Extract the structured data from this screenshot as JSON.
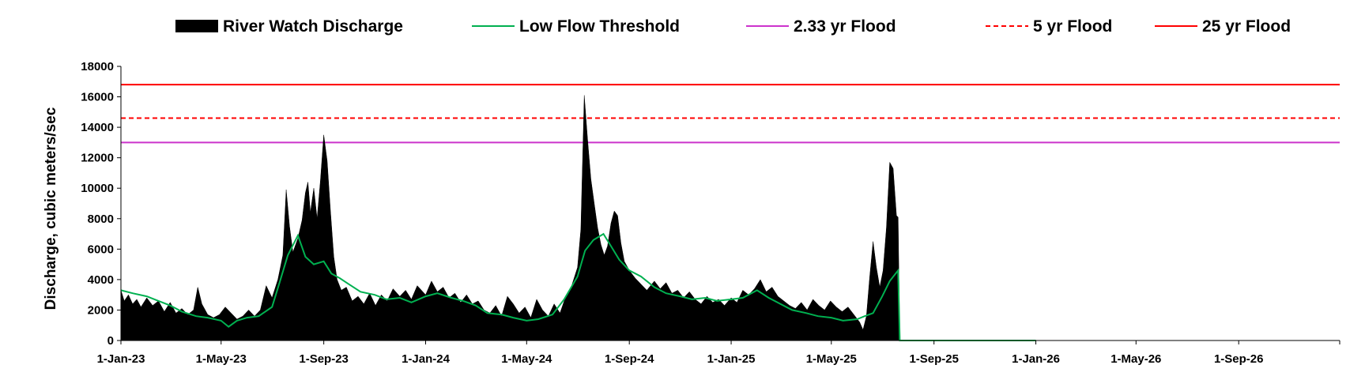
{
  "chart_data": {
    "type": "area",
    "title": "",
    "xlabel": "",
    "ylabel": "Discharge, cubic meters/sec",
    "x_range": [
      "2023-01-01",
      "2026-12-31"
    ],
    "ylim": [
      0,
      18000
    ],
    "y_ticks": [
      0,
      2000,
      4000,
      6000,
      8000,
      10000,
      12000,
      14000,
      16000,
      18000
    ],
    "x_ticks": [
      {
        "date": "2023-01-01",
        "label": "1-Jan-23"
      },
      {
        "date": "2023-05-01",
        "label": "1-May-23"
      },
      {
        "date": "2023-09-01",
        "label": "1-Sep-23"
      },
      {
        "date": "2024-01-01",
        "label": "1-Jan-24"
      },
      {
        "date": "2024-05-01",
        "label": "1-May-24"
      },
      {
        "date": "2024-09-01",
        "label": "1-Sep-24"
      },
      {
        "date": "2025-01-01",
        "label": "1-Jan-25"
      },
      {
        "date": "2025-05-01",
        "label": "1-May-25"
      },
      {
        "date": "2025-09-01",
        "label": "1-Sep-25"
      },
      {
        "date": "2026-01-01",
        "label": "1-Jan-26"
      },
      {
        "date": "2026-05-01",
        "label": "1-May-26"
      },
      {
        "date": "2026-09-01",
        "label": "1-Sep-26"
      }
    ],
    "grid": false,
    "legend_position": "top",
    "legend": [
      {
        "name": "River Watch Discharge",
        "style": "area",
        "color": "#000000"
      },
      {
        "name": "Low Flow Threshold",
        "style": "line",
        "color": "#00b050"
      },
      {
        "name": "2.33 yr Flood",
        "style": "line",
        "color": "#cc33cc"
      },
      {
        "name": "5 yr Flood",
        "style": "dashed",
        "color": "#ff0000"
      },
      {
        "name": "25 yr Flood",
        "style": "line",
        "color": "#ff0000"
      }
    ],
    "thresholds": [
      {
        "name": "2.33 yr Flood",
        "value": 13000,
        "color": "#cc33cc",
        "dash": false
      },
      {
        "name": "5 yr Flood",
        "value": 14600,
        "color": "#ff0000",
        "dash": true
      },
      {
        "name": "25 yr Flood",
        "value": 16800,
        "color": "#ff0000",
        "dash": false
      }
    ],
    "series": [
      {
        "name": "River Watch Discharge",
        "style": "area",
        "color": "#000000",
        "points": [
          [
            "2023-01-01",
            3300
          ],
          [
            "2023-01-05",
            2600
          ],
          [
            "2023-01-10",
            3000
          ],
          [
            "2023-01-15",
            2400
          ],
          [
            "2023-01-20",
            2700
          ],
          [
            "2023-01-25",
            2200
          ],
          [
            "2023-02-01",
            2800
          ],
          [
            "2023-02-08",
            2300
          ],
          [
            "2023-02-15",
            2600
          ],
          [
            "2023-02-22",
            1900
          ],
          [
            "2023-03-01",
            2500
          ],
          [
            "2023-03-08",
            1800
          ],
          [
            "2023-03-15",
            2100
          ],
          [
            "2023-03-22",
            1700
          ],
          [
            "2023-03-29",
            2000
          ],
          [
            "2023-04-03",
            3500
          ],
          [
            "2023-04-08",
            2400
          ],
          [
            "2023-04-15",
            1700
          ],
          [
            "2023-04-22",
            1500
          ],
          [
            "2023-04-29",
            1700
          ],
          [
            "2023-05-06",
            2200
          ],
          [
            "2023-05-13",
            1800
          ],
          [
            "2023-05-20",
            1400
          ],
          [
            "2023-05-27",
            1600
          ],
          [
            "2023-06-03",
            2000
          ],
          [
            "2023-06-10",
            1600
          ],
          [
            "2023-06-17",
            2000
          ],
          [
            "2023-06-24",
            3600
          ],
          [
            "2023-07-01",
            2800
          ],
          [
            "2023-07-08",
            4000
          ],
          [
            "2023-07-14",
            5600
          ],
          [
            "2023-07-18",
            9900
          ],
          [
            "2023-07-22",
            7500
          ],
          [
            "2023-07-26",
            5800
          ],
          [
            "2023-08-01",
            6700
          ],
          [
            "2023-08-06",
            7900
          ],
          [
            "2023-08-10",
            9700
          ],
          [
            "2023-08-13",
            10400
          ],
          [
            "2023-08-16",
            8400
          ],
          [
            "2023-08-20",
            10000
          ],
          [
            "2023-08-24",
            8000
          ],
          [
            "2023-08-28",
            10500
          ],
          [
            "2023-09-01",
            13500
          ],
          [
            "2023-09-05",
            11800
          ],
          [
            "2023-09-09",
            8500
          ],
          [
            "2023-09-13",
            5500
          ],
          [
            "2023-09-17",
            4000
          ],
          [
            "2023-09-22",
            3300
          ],
          [
            "2023-09-28",
            3500
          ],
          [
            "2023-10-05",
            2600
          ],
          [
            "2023-10-12",
            2900
          ],
          [
            "2023-10-19",
            2400
          ],
          [
            "2023-10-26",
            3100
          ],
          [
            "2023-11-02",
            2300
          ],
          [
            "2023-11-09",
            3000
          ],
          [
            "2023-11-16",
            2600
          ],
          [
            "2023-11-23",
            3400
          ],
          [
            "2023-12-01",
            2900
          ],
          [
            "2023-12-08",
            3300
          ],
          [
            "2023-12-15",
            2700
          ],
          [
            "2023-12-22",
            3600
          ],
          [
            "2024-01-01",
            3000
          ],
          [
            "2024-01-08",
            3900
          ],
          [
            "2024-01-15",
            3200
          ],
          [
            "2024-01-22",
            3500
          ],
          [
            "2024-01-29",
            2800
          ],
          [
            "2024-02-05",
            3100
          ],
          [
            "2024-02-12",
            2500
          ],
          [
            "2024-02-19",
            3000
          ],
          [
            "2024-02-26",
            2400
          ],
          [
            "2024-03-04",
            2600
          ],
          [
            "2024-03-11",
            2000
          ],
          [
            "2024-03-18",
            1800
          ],
          [
            "2024-03-25",
            2300
          ],
          [
            "2024-04-01",
            1600
          ],
          [
            "2024-04-08",
            2900
          ],
          [
            "2024-04-15",
            2400
          ],
          [
            "2024-04-22",
            1800
          ],
          [
            "2024-04-29",
            2200
          ],
          [
            "2024-05-06",
            1500
          ],
          [
            "2024-05-13",
            2700
          ],
          [
            "2024-05-20",
            2000
          ],
          [
            "2024-05-27",
            1600
          ],
          [
            "2024-06-03",
            2400
          ],
          [
            "2024-06-10",
            1800
          ],
          [
            "2024-06-17",
            2900
          ],
          [
            "2024-06-24",
            3600
          ],
          [
            "2024-07-01",
            4800
          ],
          [
            "2024-07-05",
            7300
          ],
          [
            "2024-07-09",
            16100
          ],
          [
            "2024-07-13",
            13200
          ],
          [
            "2024-07-17",
            10600
          ],
          [
            "2024-07-21",
            9000
          ],
          [
            "2024-07-25",
            7400
          ],
          [
            "2024-07-29",
            6300
          ],
          [
            "2024-08-02",
            5600
          ],
          [
            "2024-08-06",
            6200
          ],
          [
            "2024-08-10",
            7700
          ],
          [
            "2024-08-14",
            8500
          ],
          [
            "2024-08-18",
            8200
          ],
          [
            "2024-08-22",
            6400
          ],
          [
            "2024-08-26",
            5200
          ],
          [
            "2024-09-01",
            4600
          ],
          [
            "2024-09-08",
            4100
          ],
          [
            "2024-09-15",
            3700
          ],
          [
            "2024-09-22",
            3300
          ],
          [
            "2024-10-01",
            3900
          ],
          [
            "2024-10-08",
            3400
          ],
          [
            "2024-10-15",
            3800
          ],
          [
            "2024-10-22",
            3100
          ],
          [
            "2024-10-29",
            3300
          ],
          [
            "2024-11-05",
            2800
          ],
          [
            "2024-11-12",
            3200
          ],
          [
            "2024-11-19",
            2700
          ],
          [
            "2024-11-26",
            2400
          ],
          [
            "2024-12-03",
            2900
          ],
          [
            "2024-12-10",
            2500
          ],
          [
            "2024-12-17",
            2700
          ],
          [
            "2024-12-24",
            2300
          ],
          [
            "2025-01-01",
            2800
          ],
          [
            "2025-01-08",
            2500
          ],
          [
            "2025-01-15",
            3300
          ],
          [
            "2025-01-22",
            3000
          ],
          [
            "2025-01-29",
            3400
          ],
          [
            "2025-02-05",
            4000
          ],
          [
            "2025-02-12",
            3200
          ],
          [
            "2025-02-19",
            3500
          ],
          [
            "2025-02-26",
            2900
          ],
          [
            "2025-03-05",
            2600
          ],
          [
            "2025-03-12",
            2300
          ],
          [
            "2025-03-19",
            2100
          ],
          [
            "2025-03-26",
            2500
          ],
          [
            "2025-04-02",
            2000
          ],
          [
            "2025-04-09",
            2700
          ],
          [
            "2025-04-16",
            2300
          ],
          [
            "2025-04-23",
            2000
          ],
          [
            "2025-04-30",
            2600
          ],
          [
            "2025-05-07",
            2200
          ],
          [
            "2025-05-14",
            1900
          ],
          [
            "2025-05-21",
            2200
          ],
          [
            "2025-05-28",
            1700
          ],
          [
            "2025-06-04",
            1200
          ],
          [
            "2025-06-08",
            700
          ],
          [
            "2025-06-12",
            1600
          ],
          [
            "2025-06-16",
            4200
          ],
          [
            "2025-06-20",
            6500
          ],
          [
            "2025-06-24",
            4800
          ],
          [
            "2025-06-28",
            3500
          ],
          [
            "2025-07-02",
            4600
          ],
          [
            "2025-07-06",
            7400
          ],
          [
            "2025-07-10",
            11700
          ],
          [
            "2025-07-14",
            11300
          ],
          [
            "2025-07-18",
            8200
          ],
          [
            "2025-07-20",
            8100
          ],
          [
            "2025-07-22",
            0
          ]
        ]
      },
      {
        "name": "Low Flow Threshold",
        "style": "line",
        "color": "#00b050",
        "points": [
          [
            "2023-01-01",
            3300
          ],
          [
            "2023-01-15",
            3100
          ],
          [
            "2023-02-01",
            2900
          ],
          [
            "2023-02-15",
            2600
          ],
          [
            "2023-03-01",
            2300
          ],
          [
            "2023-03-15",
            1900
          ],
          [
            "2023-04-01",
            1600
          ],
          [
            "2023-04-15",
            1500
          ],
          [
            "2023-05-01",
            1300
          ],
          [
            "2023-05-10",
            900
          ],
          [
            "2023-05-20",
            1300
          ],
          [
            "2023-06-01",
            1500
          ],
          [
            "2023-06-15",
            1600
          ],
          [
            "2023-07-01",
            2200
          ],
          [
            "2023-07-10",
            3800
          ],
          [
            "2023-07-20",
            5600
          ],
          [
            "2023-08-01",
            6900
          ],
          [
            "2023-08-10",
            5500
          ],
          [
            "2023-08-20",
            5000
          ],
          [
            "2023-09-01",
            5200
          ],
          [
            "2023-09-10",
            4400
          ],
          [
            "2023-09-20",
            4100
          ],
          [
            "2023-10-01",
            3700
          ],
          [
            "2023-10-15",
            3200
          ],
          [
            "2023-11-01",
            3000
          ],
          [
            "2023-11-15",
            2700
          ],
          [
            "2023-12-01",
            2800
          ],
          [
            "2023-12-15",
            2500
          ],
          [
            "2024-01-01",
            2900
          ],
          [
            "2024-01-15",
            3100
          ],
          [
            "2024-02-01",
            2800
          ],
          [
            "2024-02-15",
            2600
          ],
          [
            "2024-03-01",
            2300
          ],
          [
            "2024-03-15",
            1800
          ],
          [
            "2024-04-01",
            1700
          ],
          [
            "2024-04-15",
            1500
          ],
          [
            "2024-05-01",
            1300
          ],
          [
            "2024-05-15",
            1400
          ],
          [
            "2024-06-01",
            1700
          ],
          [
            "2024-06-15",
            2700
          ],
          [
            "2024-07-01",
            4200
          ],
          [
            "2024-07-10",
            5900
          ],
          [
            "2024-07-20",
            6600
          ],
          [
            "2024-08-01",
            7000
          ],
          [
            "2024-08-10",
            6200
          ],
          [
            "2024-08-20",
            5300
          ],
          [
            "2024-09-01",
            4600
          ],
          [
            "2024-09-15",
            4200
          ],
          [
            "2024-10-01",
            3500
          ],
          [
            "2024-10-15",
            3100
          ],
          [
            "2024-11-01",
            2900
          ],
          [
            "2024-11-15",
            2700
          ],
          [
            "2024-12-01",
            2800
          ],
          [
            "2024-12-15",
            2600
          ],
          [
            "2025-01-01",
            2700
          ],
          [
            "2025-01-15",
            2800
          ],
          [
            "2025-02-01",
            3300
          ],
          [
            "2025-02-15",
            2800
          ],
          [
            "2025-03-01",
            2400
          ],
          [
            "2025-03-15",
            2000
          ],
          [
            "2025-04-01",
            1800
          ],
          [
            "2025-04-15",
            1600
          ],
          [
            "2025-05-01",
            1500
          ],
          [
            "2025-05-15",
            1300
          ],
          [
            "2025-06-01",
            1400
          ],
          [
            "2025-06-10",
            1600
          ],
          [
            "2025-06-20",
            1800
          ],
          [
            "2025-07-01",
            2900
          ],
          [
            "2025-07-10",
            3900
          ],
          [
            "2025-07-20",
            4600
          ],
          [
            "2025-07-22",
            0
          ],
          [
            "2026-01-01",
            0
          ]
        ]
      }
    ]
  }
}
